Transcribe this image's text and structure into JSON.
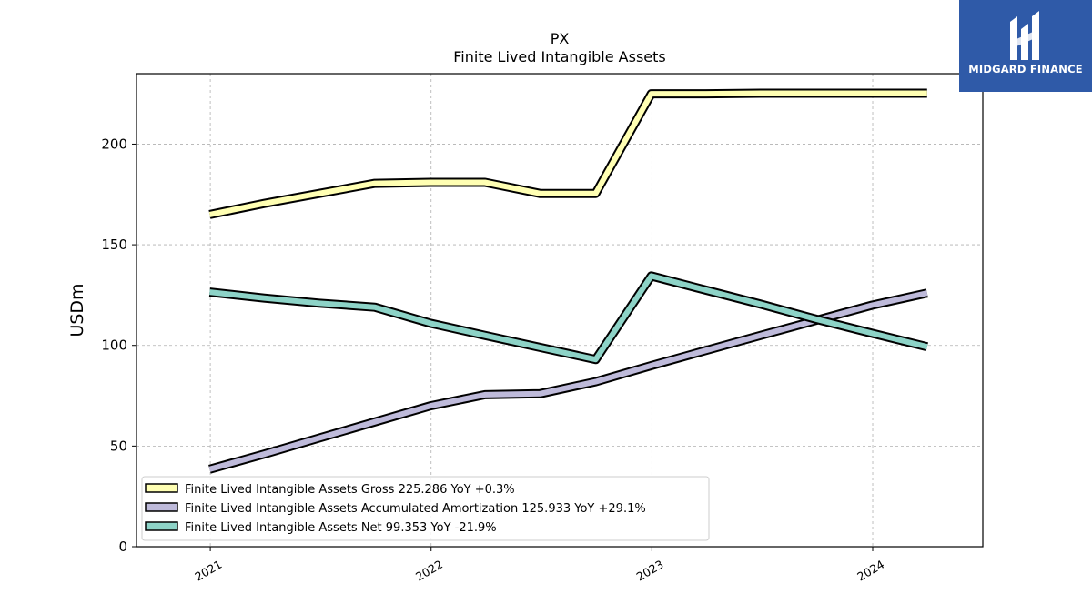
{
  "chart_data": {
    "type": "line",
    "title": "PX",
    "subtitle": "Finite Lived Intangible Assets",
    "ylabel": "USDm",
    "xlabel": "",
    "ylim": [
      0,
      235
    ],
    "xlim": [
      "2020-09-01",
      "2024-07-01"
    ],
    "yticks": [
      0,
      50,
      100,
      150,
      200
    ],
    "xticks": [
      "2021",
      "2022",
      "2023",
      "2024"
    ],
    "grid": true,
    "legend_position": "lower-left",
    "x": [
      "2020-12-31",
      "2021-03-31",
      "2021-06-30",
      "2021-09-30",
      "2021-12-31",
      "2022-03-31",
      "2022-06-30",
      "2022-09-30",
      "2022-12-31",
      "2023-03-31",
      "2023-06-30",
      "2023-09-30",
      "2023-12-31",
      "2024-03-31"
    ],
    "series": [
      {
        "name": "Finite Lived Intangible Assets Gross",
        "legend_label": "Finite Lived Intangible Assets Gross  225.286 YoY +0.3%",
        "color": "#ffffb3",
        "values": [
          165,
          170.5,
          175.5,
          180.5,
          181,
          181,
          175.5,
          175.5,
          225,
          225,
          225.3,
          225.3,
          225.3,
          225.3
        ]
      },
      {
        "name": "Finite Lived Intangible Assets Accumulated Amortization",
        "legend_label": "Finite Lived Intangible Assets Accumulated Amortization  125.933 YoY +29.1%",
        "color": "#bebada",
        "values": [
          38.5,
          46,
          54,
          62,
          70,
          75.5,
          76,
          82,
          90,
          97.5,
          105,
          112.5,
          120,
          126
        ]
      },
      {
        "name": "Finite Lived Intangible Assets Net",
        "legend_label": "Finite Lived Intangible Assets Net  99.353 YoY -21.9%",
        "color": "#8dd3c7",
        "values": [
          126.5,
          123.5,
          121,
          119,
          111,
          105,
          99,
          93,
          134.5,
          127.5,
          120.5,
          113,
          106,
          99.35
        ]
      }
    ]
  },
  "brand": {
    "name": "MIDGARD FINANCE",
    "color": "#2f5aa8"
  }
}
